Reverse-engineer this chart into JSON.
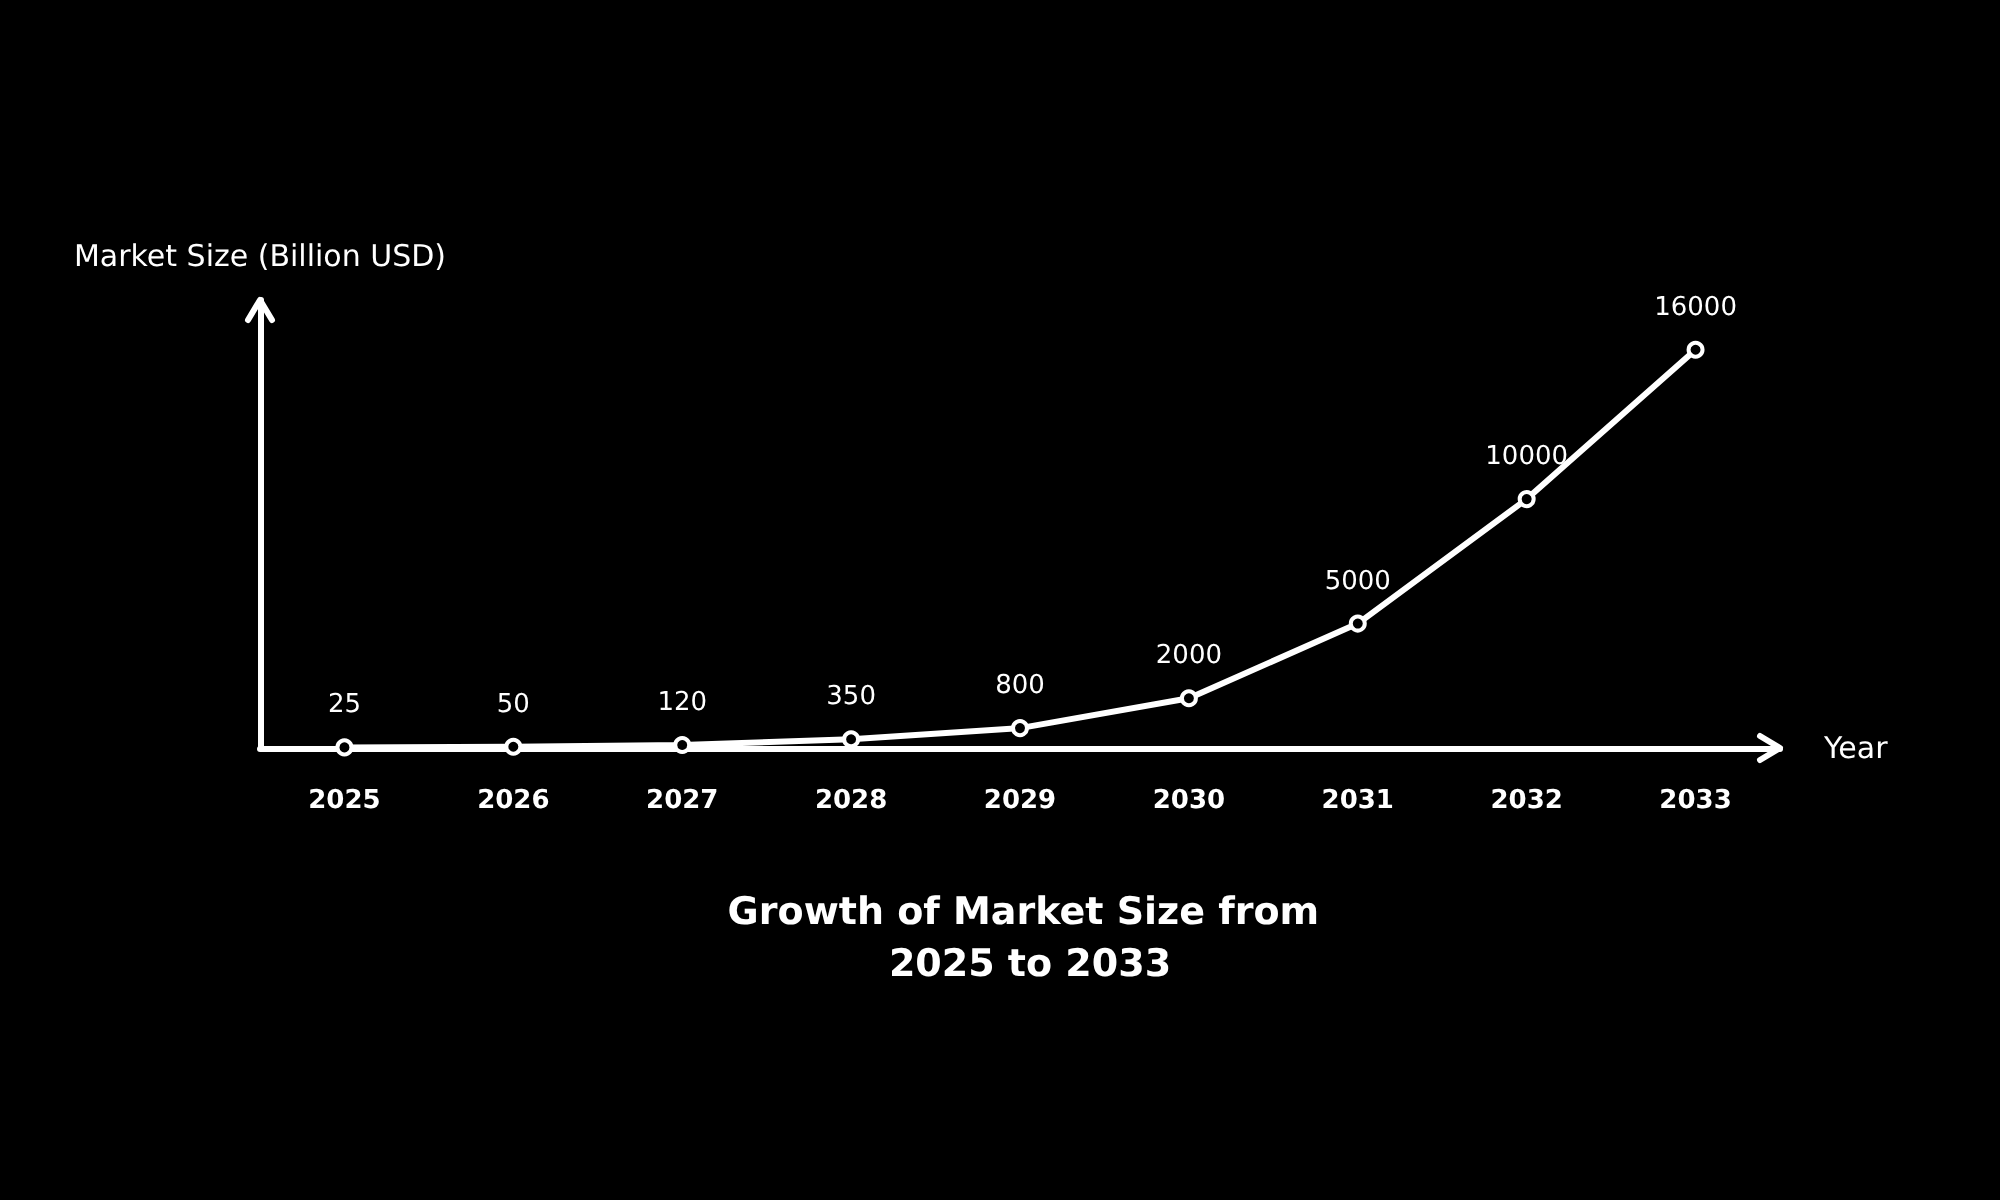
{
  "chart_data": {
    "type": "line",
    "title": "Growth of Market Size from 2025 to 2033",
    "xlabel": "Year",
    "ylabel": "Market Size (Billion USD)",
    "categories": [
      "2025",
      "2026",
      "2027",
      "2028",
      "2029",
      "2030",
      "2031",
      "2032",
      "2033"
    ],
    "series": [
      {
        "color": "#ffffff",
        "values": [
          25,
          50,
          120,
          350,
          800,
          2000,
          5000,
          10000,
          16000
        ]
      }
    ],
    "data_labels": true,
    "marker": "circle",
    "line_style": "solid",
    "grid": false
  }
}
